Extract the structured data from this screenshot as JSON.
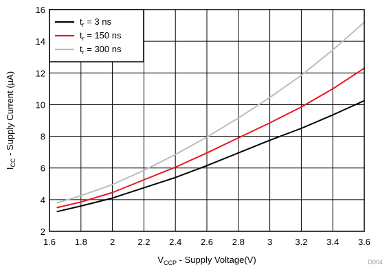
{
  "chart_data": {
    "type": "line",
    "xlabel": {
      "main": "V",
      "sub": "CCP",
      "rest": " - Supply Voltage(V)"
    },
    "ylabel": {
      "main": "I",
      "sub": "CC",
      "rest": " - Supply Current (µA)"
    },
    "xlim": [
      1.6,
      3.6
    ],
    "ylim": [
      2,
      16
    ],
    "xticks": [
      1.6,
      1.8,
      2,
      2.2,
      2.4,
      2.6,
      2.8,
      3,
      3.2,
      3.4,
      3.6
    ],
    "xtick_labels": [
      "1.6",
      "1.8",
      "2",
      "2.2",
      "2.4",
      "2.6",
      "2.8",
      "3",
      "3.2",
      "3.4",
      "3.6"
    ],
    "yticks": [
      2,
      4,
      6,
      8,
      10,
      12,
      14,
      16
    ],
    "ytick_labels": [
      "2",
      "4",
      "6",
      "8",
      "10",
      "12",
      "14",
      "16"
    ],
    "grid": true,
    "legend_position": "top-left",
    "footnote": "D004",
    "x": [
      1.65,
      1.8,
      2.0,
      2.2,
      2.4,
      2.6,
      2.8,
      3.0,
      3.2,
      3.4,
      3.6
    ],
    "series": [
      {
        "name": "3 ns",
        "legend": {
          "main": "t",
          "sub": "r",
          "rest": " = 3 ns"
        },
        "color": "#000000",
        "values": [
          3.25,
          3.6,
          4.1,
          4.75,
          5.4,
          6.15,
          6.95,
          7.75,
          8.5,
          9.35,
          10.25
        ]
      },
      {
        "name": "150 ns",
        "legend": {
          "main": "t",
          "sub": "r",
          "rest": " = 150 ns"
        },
        "color": "#e8171c",
        "values": [
          3.5,
          3.85,
          4.45,
          5.25,
          6.05,
          6.95,
          7.9,
          8.85,
          9.85,
          11.0,
          12.3
        ]
      },
      {
        "name": "300 ns",
        "legend": {
          "main": "t",
          "sub": "r",
          "rest": " = 300 ns"
        },
        "color": "#bdbdbd",
        "values": [
          3.8,
          4.25,
          4.95,
          5.85,
          6.85,
          7.95,
          9.15,
          10.45,
          11.85,
          13.45,
          15.2
        ]
      }
    ]
  }
}
